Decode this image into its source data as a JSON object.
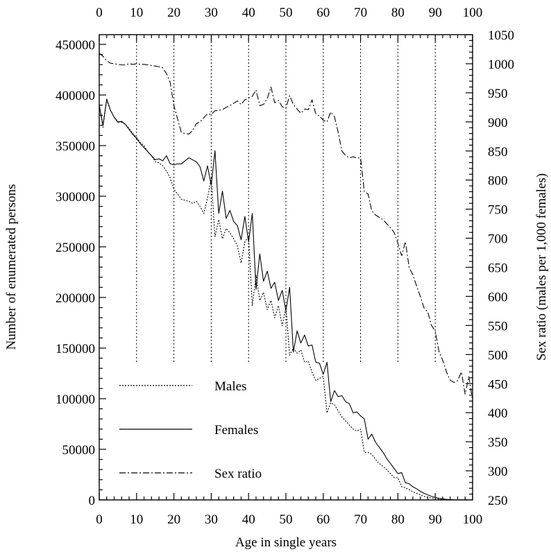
{
  "chart_data": {
    "type": "line",
    "xlabel": "Age in single years",
    "ylabel": "Number of enumerated persons",
    "y2label": "Sex ratio (males per 1,000 females)",
    "xlim": [
      0,
      100
    ],
    "ylim": [
      0,
      460000
    ],
    "y2lim": [
      250,
      1050
    ],
    "x_ticks": [
      0,
      10,
      20,
      30,
      40,
      50,
      60,
      70,
      80,
      90,
      100
    ],
    "x_tick_labels": [
      "0",
      "10",
      "20",
      "30",
      "40",
      "50",
      "60",
      "70",
      "80",
      "90",
      "100"
    ],
    "y_ticks": [
      0,
      50000,
      100000,
      150000,
      200000,
      250000,
      300000,
      350000,
      400000,
      450000
    ],
    "y_tick_labels": [
      "0",
      "50000",
      "100000",
      "150000",
      "200000",
      "250000",
      "300000",
      "350000",
      "400000",
      "450000"
    ],
    "y2_ticks": [
      250,
      300,
      350,
      400,
      450,
      500,
      550,
      600,
      650,
      700,
      750,
      800,
      850,
      900,
      950,
      1000,
      1050
    ],
    "y2_tick_labels": [
      "250",
      "300",
      "350",
      "400",
      "450",
      "500",
      "550",
      "600",
      "650",
      "700",
      "750",
      "800",
      "850",
      "900",
      "950",
      "1000",
      "1050"
    ],
    "vertical_reference_lines": {
      "x": [
        10,
        20,
        30,
        40,
        50,
        60,
        70,
        80,
        90
      ],
      "y_bottom": 135000,
      "style": "dotted"
    },
    "legend": {
      "placement": "lower-left",
      "entries": [
        {
          "label": "Males",
          "style": "dotted"
        },
        {
          "label": "Females",
          "style": "solid"
        },
        {
          "label": "Sex ratio",
          "style": "dash-dot"
        }
      ]
    },
    "x": [
      0,
      1,
      2,
      3,
      4,
      5,
      6,
      7,
      8,
      9,
      10,
      11,
      12,
      13,
      14,
      15,
      16,
      17,
      18,
      19,
      20,
      21,
      22,
      23,
      24,
      25,
      26,
      27,
      28,
      29,
      30,
      31,
      32,
      33,
      34,
      35,
      36,
      37,
      38,
      39,
      40,
      41,
      42,
      43,
      44,
      45,
      46,
      47,
      48,
      49,
      50,
      51,
      52,
      53,
      54,
      55,
      56,
      57,
      58,
      59,
      60,
      61,
      62,
      63,
      64,
      65,
      66,
      67,
      68,
      69,
      70,
      71,
      72,
      73,
      74,
      75,
      76,
      77,
      78,
      79,
      80,
      81,
      82,
      83,
      84,
      85,
      86,
      87,
      88,
      89,
      90,
      91,
      92,
      93,
      94,
      95,
      96,
      97,
      98,
      99,
      100
    ],
    "series": [
      {
        "name": "Males",
        "axis": "left",
        "values": [
          390000,
          368000,
          395000,
          385000,
          378000,
          374000,
          373000,
          371000,
          367000,
          362000,
          358000,
          353000,
          350000,
          344000,
          340000,
          334000,
          333000,
          330000,
          325000,
          318000,
          307000,
          302000,
          297000,
          296000,
          295000,
          293000,
          295000,
          290000,
          283000,
          298000,
          318000,
          260000,
          277000,
          258000,
          268000,
          264000,
          258000,
          251000,
          234000,
          255000,
          260000,
          192000,
          222000,
          197000,
          205000,
          188000,
          197000,
          180000,
          192000,
          172000,
          190000,
          143000,
          150000,
          145000,
          148000,
          136000,
          137000,
          126000,
          118000,
          120000,
          122000,
          86000,
          96000,
          94000,
          88000,
          82000,
          78000,
          74000,
          70000,
          68000,
          70000,
          47000,
          47000,
          45000,
          40000,
          36000,
          33000,
          30000,
          26000,
          22000,
          22000,
          13000,
          12000,
          10000,
          8000,
          6500,
          5000,
          3500,
          2600,
          1800,
          1200,
          700,
          400,
          200,
          100,
          50,
          0,
          0,
          0,
          0,
          0
        ]
      },
      {
        "name": "Females",
        "axis": "left",
        "values": [
          390000,
          370000,
          396000,
          385000,
          378000,
          373000,
          374000,
          371000,
          366000,
          361000,
          357000,
          352000,
          348000,
          344000,
          340000,
          336000,
          337000,
          335000,
          340000,
          332000,
          331000,
          332000,
          332000,
          335000,
          338000,
          336000,
          334000,
          329000,
          315000,
          330000,
          311000,
          345000,
          283000,
          305000,
          278000,
          286000,
          275000,
          271000,
          257000,
          280000,
          255000,
          283000,
          208000,
          243000,
          216000,
          226000,
          209000,
          215000,
          197000,
          207000,
          187000,
          210000,
          146000,
          167000,
          155000,
          163000,
          152000,
          153000,
          136000,
          135000,
          124000,
          136000,
          97000,
          108000,
          102000,
          103000,
          97000,
          95000,
          86000,
          87000,
          83000,
          80000,
          60000,
          65000,
          57000,
          52000,
          47000,
          41000,
          36000,
          31000,
          26000,
          27000,
          17000,
          16000,
          13000,
          11000,
          8500,
          6500,
          5000,
          3500,
          2500,
          1600,
          1000,
          600,
          300,
          150,
          80,
          40,
          20,
          10,
          0
        ]
      },
      {
        "name": "Sex ratio",
        "axis": "right",
        "values": [
          1018,
          1013,
          1005,
          1001,
          1000,
          999,
          998,
          998,
          1000,
          999,
          1000,
          999,
          999,
          998,
          997,
          996,
          995,
          993,
          983,
          968,
          928,
          905,
          882,
          880,
          879,
          885,
          897,
          900,
          907,
          914,
          913,
          919,
          920,
          921,
          925,
          928,
          932,
          936,
          930,
          938,
          941,
          944,
          955,
          928,
          930,
          940,
          960,
          933,
          937,
          926,
          924,
          945,
          930,
          922,
          915,
          922,
          921,
          938,
          914,
          910,
          903,
          900,
          917,
          909,
          882,
          850,
          842,
          838,
          840,
          838,
          838,
          780,
          776,
          747,
          740,
          736,
          732,
          725,
          718,
          710,
          691,
          670,
          694,
          650,
          637,
          618,
          600,
          580,
          573,
          550,
          540,
          505,
          490,
          470,
          456,
          452,
          455,
          470,
          432,
          462,
          420
        ]
      }
    ]
  }
}
